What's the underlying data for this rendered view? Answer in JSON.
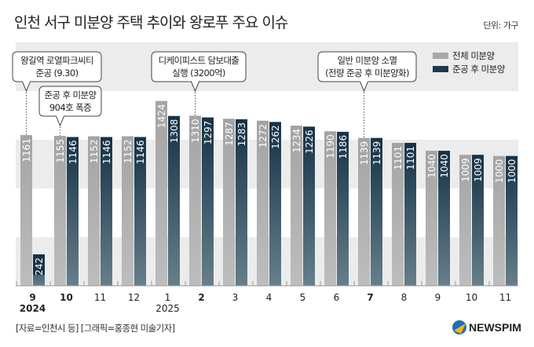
{
  "title": "인천 서구 미분양 주택 추이와 왕로푸 주요 이슈",
  "unit": "단위: 가구",
  "source": "[자료=인천시 등] [그래픽=홍종현 미술기자]",
  "logo": "NEWSPIM",
  "chart_data": {
    "type": "bar",
    "categories": [
      "9",
      "10",
      "11",
      "12",
      "1",
      "2",
      "3",
      "4",
      "5",
      "6",
      "7",
      "8",
      "9",
      "10",
      "11"
    ],
    "bold_categories": [
      "9",
      "10",
      "2",
      "7"
    ],
    "bold_index": [
      0,
      1,
      5,
      10
    ],
    "year_labels": [
      {
        "index": 0,
        "label": "2024",
        "bold": true
      },
      {
        "index": 4,
        "label": "2025",
        "bold": false
      }
    ],
    "series": [
      {
        "name": "전체 미분양",
        "color": "#a8a8a8",
        "values": [
          1161,
          1155,
          1152,
          1152,
          1424,
          1310,
          1287,
          1272,
          1234,
          1190,
          1139,
          1101,
          1040,
          1009,
          1000
        ]
      },
      {
        "name": "준공 후 미분양",
        "color": "#1b3a4f",
        "values": [
          242,
          1146,
          1146,
          1146,
          1308,
          1297,
          1283,
          1262,
          1226,
          1186,
          1139,
          1101,
          1040,
          1009,
          1000
        ]
      }
    ],
    "ylim": [
      0,
      1875
    ],
    "annotations": [
      {
        "index": 0,
        "lines": [
          "왕길역 로열파크씨티",
          "준공 (9.30)"
        ]
      },
      {
        "index": 1,
        "lines": [
          "준공 후 미분양",
          "904호 폭증"
        ]
      },
      {
        "index": 5,
        "lines": [
          "디케이피스트 담보대출",
          "실행 (3200억)"
        ]
      },
      {
        "index": 10,
        "lines": [
          "일반 미분양 소멸",
          "(전량 준공 후 미분양화)"
        ]
      }
    ],
    "legend_position": "top-right"
  }
}
